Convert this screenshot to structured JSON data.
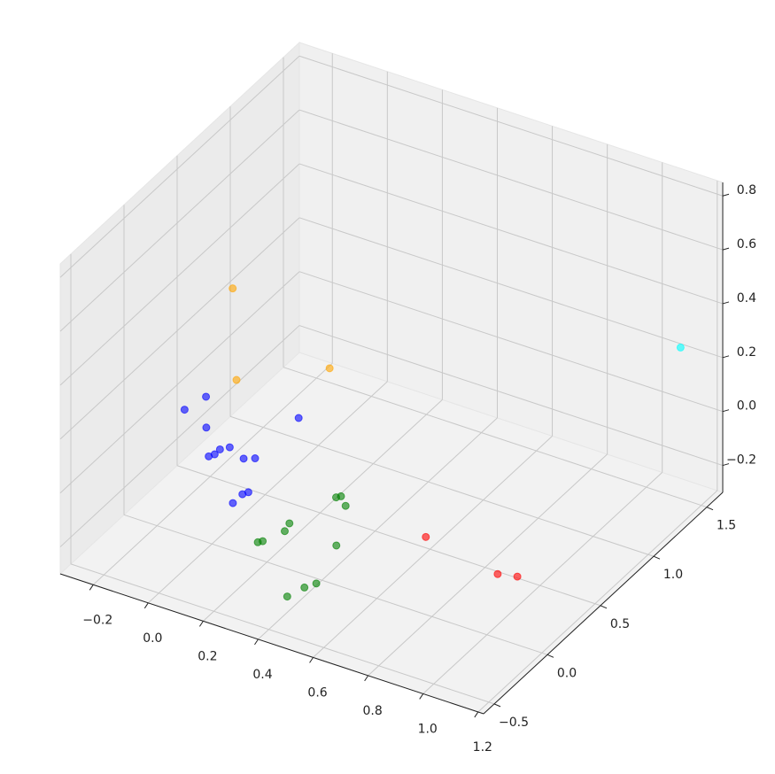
{
  "chart_data": {
    "type": "scatter3d",
    "xlim": [
      -0.32,
      1.22
    ],
    "ylim": [
      -0.6,
      1.65
    ],
    "zlim": [
      -0.3,
      0.85
    ],
    "xticks": [
      {
        "value": -0.2,
        "label": "−0.2"
      },
      {
        "value": 0,
        "label": "0.0"
      },
      0.2,
      0.4,
      0.6,
      0.8,
      {
        "value": 1,
        "label": "1.0"
      },
      1.2
    ],
    "yticks": [
      {
        "value": -0.5,
        "label": "−0.5"
      },
      {
        "value": 0,
        "label": "0.0"
      },
      0.5,
      {
        "value": 1,
        "label": "1.0"
      },
      1.5
    ],
    "zticks": [
      {
        "value": -0.2,
        "label": "−0.2"
      },
      {
        "value": 0,
        "label": "0.0"
      },
      0.2,
      0.4,
      0.6,
      0.8
    ],
    "grid": true,
    "series": [
      {
        "color": "#0000ff",
        "x": [
          -0.15,
          -0.13,
          0.18,
          -0.04,
          0.05,
          0.06,
          0.06,
          0.08,
          0.15,
          0.18,
          0.25,
          0.25,
          0.26
        ],
        "y": [
          0.13,
          0.28,
          0.35,
          0.05,
          -0.16,
          -0.13,
          -0.08,
          -0.04,
          -0.09,
          -0.06,
          -0.45,
          -0.36,
          -0.33
        ],
        "z": [
          0.1,
          0.1,
          0.1,
          0.1,
          0.1,
          0.1,
          0.1,
          0.1,
          0.1,
          0.1,
          0.1,
          0.1,
          0.1
        ]
      },
      {
        "color": "#008000",
        "x": [
          0.44,
          0.45,
          0.49,
          0.39,
          0.4,
          0.37,
          0.36,
          0.58,
          0.44,
          0.46,
          0.48
        ],
        "y": [
          0.03,
          0.05,
          -0.01,
          -0.28,
          -0.35,
          -0.48,
          -0.5,
          -0.33,
          -0.43,
          -0.32,
          -0.26
        ],
        "z": [
          0.01,
          0.01,
          0.01,
          0.01,
          0.01,
          0.01,
          0.01,
          0.01,
          -0.19,
          -0.19,
          -0.19
        ]
      },
      {
        "color": "#ff0000",
        "x": [
          0.6,
          0.9,
          0.96
        ],
        "y": [
          0.46,
          0.36,
          0.39
        ],
        "z": [
          -0.24,
          -0.24,
          -0.24
        ]
      },
      {
        "color": "#ffa500",
        "x": [
          -0.06,
          -0.05,
          0.08
        ],
        "y": [
          0.35,
          0.36,
          0.9
        ],
        "z": [
          0.5,
          0.16,
          0.05
        ]
      },
      {
        "color": "#00ffff",
        "x": [
          1.14
        ],
        "y": [
          1.46
        ],
        "z": [
          0.28
        ]
      }
    ]
  }
}
